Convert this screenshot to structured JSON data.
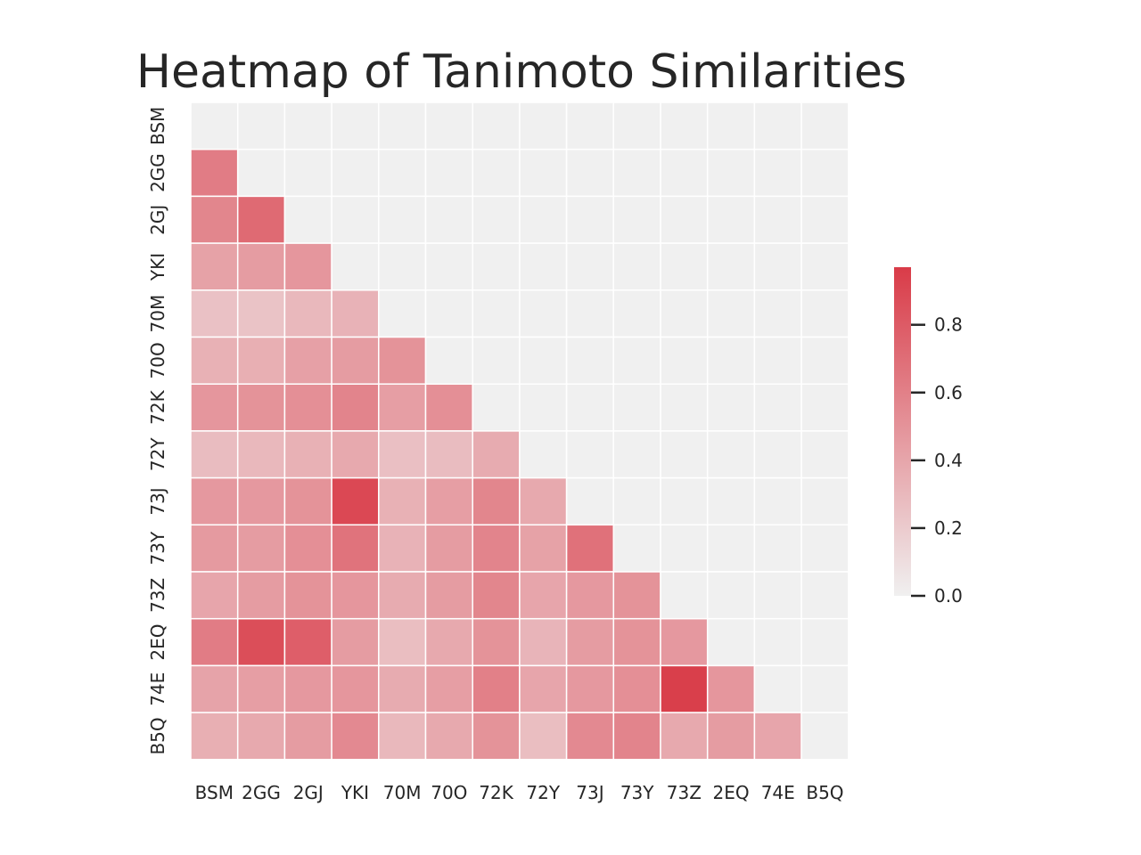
{
  "chart_data": {
    "type": "heatmap",
    "title": "Heatmap of Tanimoto Similarities",
    "xlabel": "",
    "ylabel": "",
    "x_categories": [
      "BSM",
      "2GG",
      "2GJ",
      "YKI",
      "70M",
      "70O",
      "72K",
      "72Y",
      "73J",
      "73Y",
      "73Z",
      "2EQ",
      "74E",
      "B5Q"
    ],
    "y_categories": [
      "BSM",
      "2GG",
      "2GJ",
      "YKI",
      "70M",
      "70O",
      "72K",
      "72Y",
      "73J",
      "73Y",
      "73Z",
      "2EQ",
      "74E",
      "B5Q"
    ],
    "mask": "upper-triangle-including-diagonal",
    "values": [
      [
        null,
        null,
        null,
        null,
        null,
        null,
        null,
        null,
        null,
        null,
        null,
        null,
        null,
        null
      ],
      [
        0.62,
        null,
        null,
        null,
        null,
        null,
        null,
        null,
        null,
        null,
        null,
        null,
        null,
        null
      ],
      [
        0.57,
        0.72,
        null,
        null,
        null,
        null,
        null,
        null,
        null,
        null,
        null,
        null,
        null,
        null
      ],
      [
        0.42,
        0.45,
        0.48,
        null,
        null,
        null,
        null,
        null,
        null,
        null,
        null,
        null,
        null,
        null
      ],
      [
        0.25,
        0.24,
        0.3,
        0.33,
        null,
        null,
        null,
        null,
        null,
        null,
        null,
        null,
        null,
        null
      ],
      [
        0.34,
        0.35,
        0.43,
        0.45,
        0.5,
        null,
        null,
        null,
        null,
        null,
        null,
        null,
        null,
        null
      ],
      [
        0.48,
        0.5,
        0.52,
        0.58,
        0.44,
        0.52,
        null,
        null,
        null,
        null,
        null,
        null,
        null,
        null
      ],
      [
        0.28,
        0.3,
        0.34,
        0.38,
        0.26,
        0.28,
        0.37,
        null,
        null,
        null,
        null,
        null,
        null,
        null
      ],
      [
        0.47,
        0.47,
        0.5,
        0.9,
        0.34,
        0.44,
        0.57,
        0.38,
        null,
        null,
        null,
        null,
        null,
        null
      ],
      [
        0.46,
        0.45,
        0.52,
        0.67,
        0.33,
        0.45,
        0.58,
        0.42,
        0.68,
        null,
        null,
        null,
        null,
        null
      ],
      [
        0.4,
        0.45,
        0.5,
        0.48,
        0.37,
        0.45,
        0.57,
        0.4,
        0.47,
        0.5,
        null,
        null,
        null,
        null
      ],
      [
        0.62,
        0.87,
        0.78,
        0.45,
        0.27,
        0.38,
        0.5,
        0.32,
        0.45,
        0.5,
        0.47,
        null,
        null,
        null
      ],
      [
        0.41,
        0.44,
        0.47,
        0.48,
        0.37,
        0.44,
        0.6,
        0.4,
        0.47,
        0.52,
        0.95,
        0.48,
        null,
        null
      ],
      [
        0.35,
        0.38,
        0.45,
        0.55,
        0.3,
        0.38,
        0.5,
        0.27,
        0.55,
        0.58,
        0.38,
        0.45,
        0.4,
        null
      ]
    ],
    "vmin": 0.0,
    "vmax": 0.97,
    "mask_color": "#f0f0f0",
    "low_color": "#f0f0f0",
    "high_color": "#d93b48",
    "grid_line_color": "#ffffff",
    "colorbar": {
      "ticks": [
        0.0,
        0.2,
        0.4,
        0.6,
        0.8
      ],
      "tick_labels": [
        "0.0",
        "0.2",
        "0.4",
        "0.6",
        "0.8"
      ],
      "position": "right"
    }
  }
}
